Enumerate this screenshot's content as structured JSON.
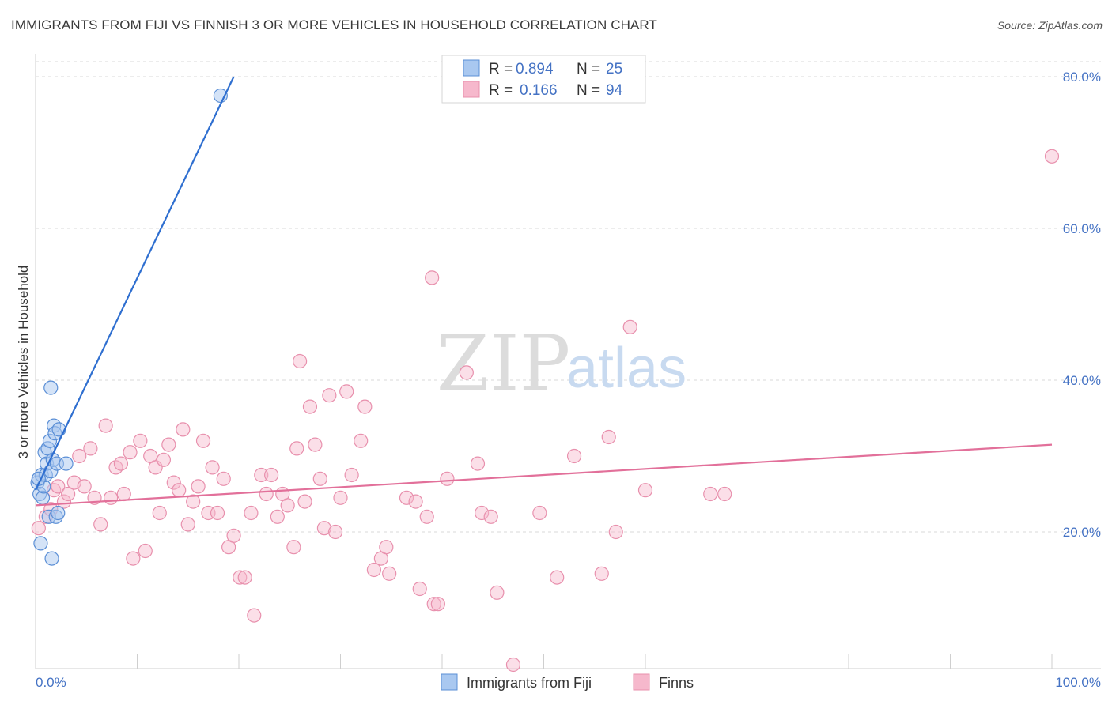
{
  "title": "IMMIGRANTS FROM FIJI VS FINNISH 3 OR MORE VEHICLES IN HOUSEHOLD CORRELATION CHART",
  "source": "Source: ZipAtlas.com",
  "watermark": {
    "zip": "ZIP",
    "atlas": "atlas"
  },
  "colors": {
    "blue_fill": "#a9c8f0",
    "blue_stroke": "#5b8fd6",
    "blue_line": "#2f6fd0",
    "pink_fill": "#f6b8cc",
    "pink_stroke": "#e890ad",
    "pink_line": "#e2709a",
    "grid": "#d8d8d8",
    "axis": "#cfcfcf",
    "label_blue": "#4472c4"
  },
  "legend": {
    "rows": [
      {
        "r_label": "R =",
        "r_value": "0.894",
        "n_label": "N =",
        "n_value": "25"
      },
      {
        "r_label": "R =",
        "r_value": "0.166",
        "n_label": "N =",
        "n_value": "94"
      }
    ]
  },
  "bottom_legend": [
    "Immigrants from Fiji",
    "Finns"
  ],
  "chart_data": {
    "type": "scatter",
    "title": "IMMIGRANTS FROM FIJI VS FINNISH 3 OR MORE VEHICLES IN HOUSEHOLD CORRELATION CHART",
    "xlabel": "",
    "ylabel": "3 or more Vehicles in Household",
    "xlim": [
      0,
      100
    ],
    "ylim": [
      0,
      80
    ],
    "x_tick_labels": [
      "0.0%",
      "100.0%"
    ],
    "y_tick_labels": [
      "20.0%",
      "40.0%",
      "60.0%",
      "80.0%"
    ],
    "y_ticks": [
      20,
      40,
      60,
      80
    ],
    "grid": true,
    "legend_position": "top-center",
    "series": [
      {
        "name": "Immigrants from Fiji",
        "color": "#a9c8f0",
        "r": 0.894,
        "n": 25,
        "trend": {
          "x": [
            0,
            19.5
          ],
          "y": [
            25.5,
            80
          ]
        },
        "points": [
          {
            "x": 0.2,
            "y": 26.5
          },
          {
            "x": 0.4,
            "y": 25.0
          },
          {
            "x": 0.5,
            "y": 18.5
          },
          {
            "x": 0.6,
            "y": 27.5
          },
          {
            "x": 0.7,
            "y": 24.5
          },
          {
            "x": 0.8,
            "y": 26.0
          },
          {
            "x": 0.9,
            "y": 30.5
          },
          {
            "x": 1.0,
            "y": 27.5
          },
          {
            "x": 1.1,
            "y": 29.0
          },
          {
            "x": 1.2,
            "y": 31.0
          },
          {
            "x": 1.3,
            "y": 22.0
          },
          {
            "x": 1.4,
            "y": 32.0
          },
          {
            "x": 1.5,
            "y": 28.0
          },
          {
            "x": 1.5,
            "y": 39.0
          },
          {
            "x": 1.6,
            "y": 16.5
          },
          {
            "x": 1.7,
            "y": 29.5
          },
          {
            "x": 1.8,
            "y": 34.0
          },
          {
            "x": 1.9,
            "y": 33.0
          },
          {
            "x": 2.0,
            "y": 22.0
          },
          {
            "x": 2.1,
            "y": 29.0
          },
          {
            "x": 2.2,
            "y": 22.5
          },
          {
            "x": 2.3,
            "y": 33.5
          },
          {
            "x": 3.0,
            "y": 29.0
          },
          {
            "x": 18.2,
            "y": 77.5
          },
          {
            "x": 0.3,
            "y": 27.0
          }
        ]
      },
      {
        "name": "Finns",
        "color": "#f6b8cc",
        "r": 0.166,
        "n": 94,
        "trend": {
          "x": [
            0,
            100
          ],
          "y": [
            23.5,
            31.5
          ]
        },
        "points": [
          {
            "x": 0.3,
            "y": 20.5
          },
          {
            "x": 1.0,
            "y": 22.0
          },
          {
            "x": 1.5,
            "y": 23.0
          },
          {
            "x": 1.8,
            "y": 25.5
          },
          {
            "x": 2.2,
            "y": 26.0
          },
          {
            "x": 2.8,
            "y": 24.0
          },
          {
            "x": 3.2,
            "y": 25.0
          },
          {
            "x": 3.8,
            "y": 26.5
          },
          {
            "x": 4.3,
            "y": 30.0
          },
          {
            "x": 4.8,
            "y": 26.0
          },
          {
            "x": 5.4,
            "y": 31.0
          },
          {
            "x": 5.8,
            "y": 24.5
          },
          {
            "x": 6.4,
            "y": 21.0
          },
          {
            "x": 6.9,
            "y": 34.0
          },
          {
            "x": 7.4,
            "y": 24.5
          },
          {
            "x": 7.9,
            "y": 28.5
          },
          {
            "x": 8.4,
            "y": 29.0
          },
          {
            "x": 8.7,
            "y": 25.0
          },
          {
            "x": 9.3,
            "y": 30.5
          },
          {
            "x": 9.6,
            "y": 16.5
          },
          {
            "x": 10.3,
            "y": 32.0
          },
          {
            "x": 10.8,
            "y": 17.5
          },
          {
            "x": 11.3,
            "y": 30.0
          },
          {
            "x": 11.8,
            "y": 28.5
          },
          {
            "x": 12.2,
            "y": 22.5
          },
          {
            "x": 12.6,
            "y": 29.5
          },
          {
            "x": 13.1,
            "y": 31.5
          },
          {
            "x": 13.6,
            "y": 26.5
          },
          {
            "x": 14.1,
            "y": 25.5
          },
          {
            "x": 14.5,
            "y": 33.5
          },
          {
            "x": 15.0,
            "y": 21.0
          },
          {
            "x": 15.5,
            "y": 24.0
          },
          {
            "x": 16.0,
            "y": 26.0
          },
          {
            "x": 16.5,
            "y": 32.0
          },
          {
            "x": 17.0,
            "y": 22.5
          },
          {
            "x": 17.4,
            "y": 28.5
          },
          {
            "x": 17.9,
            "y": 22.5
          },
          {
            "x": 18.5,
            "y": 27.0
          },
          {
            "x": 19.0,
            "y": 18.0
          },
          {
            "x": 19.5,
            "y": 19.5
          },
          {
            "x": 20.1,
            "y": 14.0
          },
          {
            "x": 20.6,
            "y": 14.0
          },
          {
            "x": 21.2,
            "y": 22.5
          },
          {
            "x": 21.5,
            "y": 9.0
          },
          {
            "x": 22.2,
            "y": 27.5
          },
          {
            "x": 22.7,
            "y": 25.0
          },
          {
            "x": 23.2,
            "y": 27.5
          },
          {
            "x": 23.8,
            "y": 22.0
          },
          {
            "x": 24.3,
            "y": 25.0
          },
          {
            "x": 24.8,
            "y": 23.5
          },
          {
            "x": 25.4,
            "y": 18.0
          },
          {
            "x": 25.7,
            "y": 31.0
          },
          {
            "x": 26.0,
            "y": 42.5
          },
          {
            "x": 26.5,
            "y": 24.0
          },
          {
            "x": 27.0,
            "y": 36.5
          },
          {
            "x": 27.5,
            "y": 31.5
          },
          {
            "x": 28.0,
            "y": 27.0
          },
          {
            "x": 28.4,
            "y": 20.5
          },
          {
            "x": 28.9,
            "y": 38.0
          },
          {
            "x": 29.5,
            "y": 20.0
          },
          {
            "x": 30.0,
            "y": 24.5
          },
          {
            "x": 30.6,
            "y": 38.5
          },
          {
            "x": 31.1,
            "y": 27.5
          },
          {
            "x": 32.0,
            "y": 32.0
          },
          {
            "x": 32.4,
            "y": 36.5
          },
          {
            "x": 33.3,
            "y": 15.0
          },
          {
            "x": 34.0,
            "y": 16.5
          },
          {
            "x": 34.5,
            "y": 18.0
          },
          {
            "x": 34.8,
            "y": 14.5
          },
          {
            "x": 36.5,
            "y": 24.5
          },
          {
            "x": 37.4,
            "y": 24.0
          },
          {
            "x": 37.8,
            "y": 12.5
          },
          {
            "x": 38.5,
            "y": 22.0
          },
          {
            "x": 39.2,
            "y": 10.5
          },
          {
            "x": 39.6,
            "y": 10.5
          },
          {
            "x": 39.0,
            "y": 53.5
          },
          {
            "x": 40.5,
            "y": 27.0
          },
          {
            "x": 42.4,
            "y": 41.0
          },
          {
            "x": 43.5,
            "y": 29.0
          },
          {
            "x": 43.9,
            "y": 22.5
          },
          {
            "x": 44.8,
            "y": 22.0
          },
          {
            "x": 45.4,
            "y": 12.0
          },
          {
            "x": 47.0,
            "y": 2.5
          },
          {
            "x": 49.6,
            "y": 22.5
          },
          {
            "x": 51.3,
            "y": 14.0
          },
          {
            "x": 53.0,
            "y": 30.0
          },
          {
            "x": 55.7,
            "y": 14.5
          },
          {
            "x": 56.4,
            "y": 32.5
          },
          {
            "x": 57.1,
            "y": 20.0
          },
          {
            "x": 58.5,
            "y": 47.0
          },
          {
            "x": 60.0,
            "y": 25.5
          },
          {
            "x": 66.4,
            "y": 25.0
          },
          {
            "x": 67.8,
            "y": 25.0
          },
          {
            "x": 100.0,
            "y": 69.5
          }
        ]
      }
    ]
  }
}
